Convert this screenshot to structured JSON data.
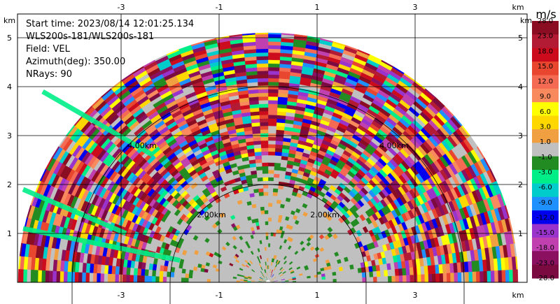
{
  "chart_data": {
    "type": "heatmap",
    "field": "VEL",
    "info_lines": [
      "Start time: 2023/08/14 12:01:25.134",
      "WLS200s-181/WLS200s-181",
      "Field: VEL",
      "Azimuth(deg): 350.00",
      "NRays: 90"
    ],
    "x_unit_label": "km",
    "y_unit_label": "km",
    "x_ticks": [
      -3,
      -1,
      1,
      3
    ],
    "y_ticks": [
      1,
      2,
      3,
      4,
      5
    ],
    "xlim": [
      -5.3,
      4.8
    ],
    "ylim": [
      -0.5,
      5.9
    ],
    "range_rings": [
      {
        "radius_km": 2,
        "label": "2.00km"
      },
      {
        "radius_km": 4,
        "label": "4.00km"
      }
    ],
    "max_range_km": 5.1,
    "grid": true,
    "colorbar": {
      "unit": "m/s",
      "labels": [
        "28.0",
        "23.0",
        "18.0",
        "15.0",
        "12.0",
        "9.0",
        "6.0",
        "3.0",
        "1.0",
        "-1.0",
        "-3.0",
        "-6.0",
        "-9.0",
        "-12.0",
        "-15.0",
        "-18.0",
        "-23.0",
        "-28.0"
      ],
      "colors": [
        "#8a0d22",
        "#b31b34",
        "#cc0c1c",
        "#e8462e",
        "#f56a52",
        "#f98a5d",
        "#ffff00",
        "#ffd700",
        "#f0a040",
        "#c0c0c0",
        "#228b22",
        "#00ee88",
        "#00cccc",
        "#1e90ff",
        "#0000ee",
        "#9933cc",
        "#c040b0",
        "#8b1060",
        "#7b0a40"
      ]
    }
  }
}
